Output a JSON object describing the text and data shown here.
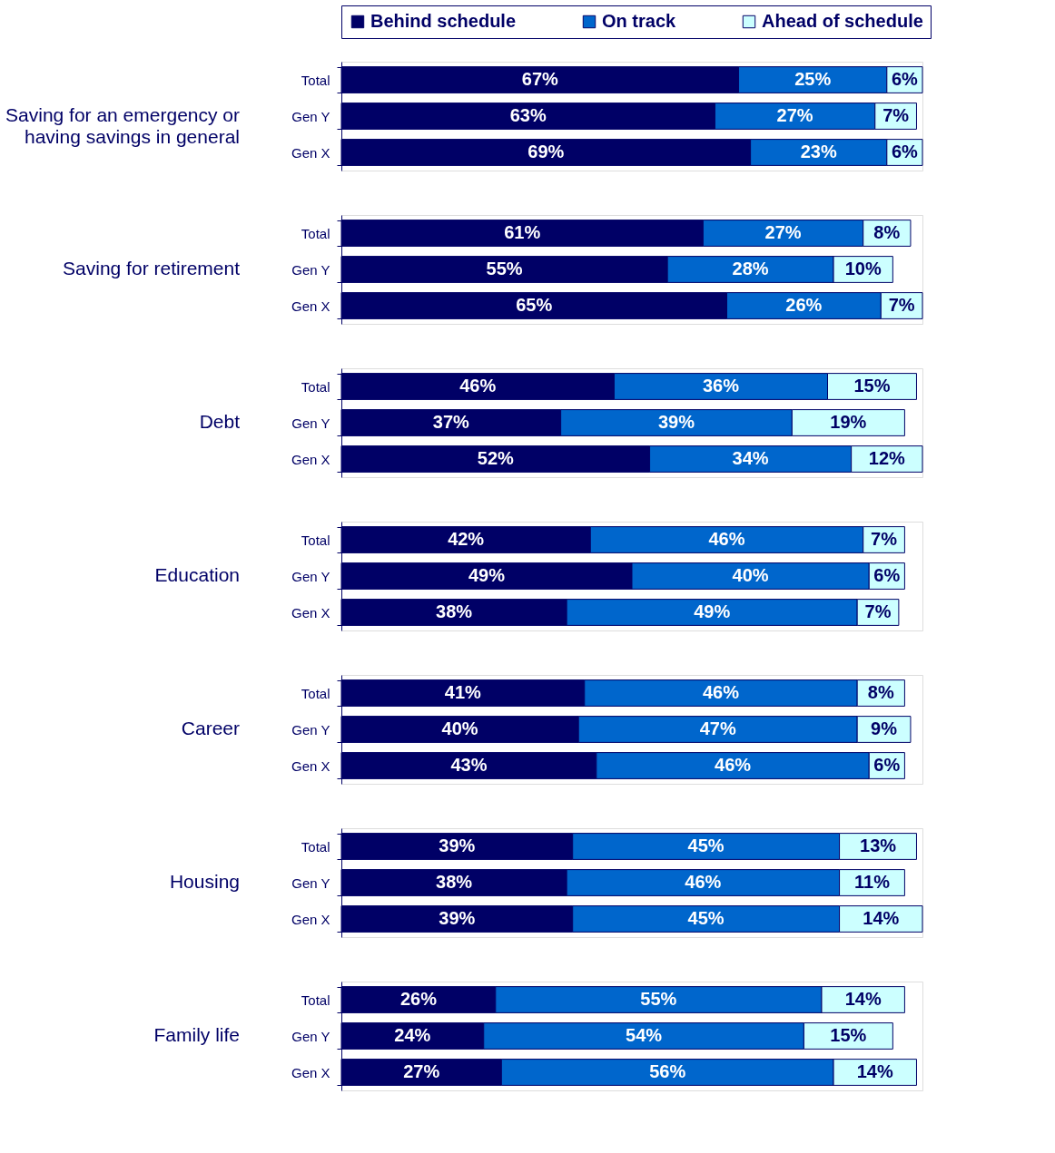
{
  "chart_data": [
    {
      "type": "bar",
      "orientation": "horizontal",
      "stacked": true,
      "title": "Saving for an emergency or having savings in general",
      "legend": "top",
      "categories": [
        "Total",
        "Gen Y",
        "Gen X"
      ],
      "series": [
        {
          "name": "Behind schedule",
          "color": "#000066",
          "values": [
            67,
            63,
            69
          ],
          "value_labels": [
            "67%",
            "63%",
            "69%"
          ]
        },
        {
          "name": "On track",
          "color": "#0066cc",
          "values": [
            25,
            27,
            23
          ],
          "value_labels": [
            "25%",
            "27%",
            "23%"
          ]
        },
        {
          "name": "Ahead of schedule",
          "color": "#ccffff",
          "values": [
            6,
            7,
            6
          ],
          "value_labels": [
            "6%",
            "7%",
            "6%"
          ]
        }
      ]
    },
    {
      "type": "bar",
      "orientation": "horizontal",
      "stacked": true,
      "title": "Saving for retirement",
      "categories": [
        "Total",
        "Gen Y",
        "Gen X"
      ],
      "series": [
        {
          "color": "#000066",
          "values": [
            61,
            55,
            65
          ],
          "value_labels": [
            "61%",
            "55%",
            "65%"
          ]
        },
        {
          "color": "#0066cc",
          "values": [
            27,
            28,
            26
          ],
          "value_labels": [
            "27%",
            "28%",
            "26%"
          ]
        },
        {
          "color": "#ccffff",
          "values": [
            8,
            10,
            7
          ],
          "value_labels": [
            "8%",
            "10%",
            "7%"
          ]
        }
      ]
    },
    {
      "type": "bar",
      "orientation": "horizontal",
      "stacked": true,
      "title": "Debt",
      "categories": [
        "Total",
        "Gen Y",
        "Gen X"
      ],
      "series": [
        {
          "color": "#000066",
          "values": [
            46,
            37,
            52
          ],
          "value_labels": [
            "46%",
            "37%",
            "52%"
          ]
        },
        {
          "color": "#0066cc",
          "values": [
            36,
            39,
            34
          ],
          "value_labels": [
            "36%",
            "39%",
            "34%"
          ]
        },
        {
          "color": "#ccffff",
          "values": [
            15,
            19,
            12
          ],
          "value_labels": [
            "15%",
            "19%",
            "12%"
          ]
        }
      ]
    },
    {
      "type": "bar",
      "orientation": "horizontal",
      "stacked": true,
      "title": "Education",
      "categories": [
        "Total",
        "Gen Y",
        "Gen X"
      ],
      "series": [
        {
          "color": "#000066",
          "values": [
            42,
            49,
            38
          ],
          "value_labels": [
            "42%",
            "49%",
            "38%"
          ]
        },
        {
          "color": "#0066cc",
          "values": [
            46,
            40,
            49
          ],
          "value_labels": [
            "46%",
            "40%",
            "49%"
          ]
        },
        {
          "color": "#ccffff",
          "values": [
            7,
            6,
            7
          ],
          "value_labels": [
            "7%",
            "6%",
            "7%"
          ]
        }
      ]
    },
    {
      "type": "bar",
      "orientation": "horizontal",
      "stacked": true,
      "title": "Career",
      "categories": [
        "Total",
        "Gen Y",
        "Gen X"
      ],
      "series": [
        {
          "color": "#000066",
          "values": [
            41,
            40,
            43
          ],
          "value_labels": [
            "41%",
            "40%",
            "43%"
          ]
        },
        {
          "color": "#0066cc",
          "values": [
            46,
            47,
            46
          ],
          "value_labels": [
            "46%",
            "47%",
            "46%"
          ]
        },
        {
          "color": "#ccffff",
          "values": [
            8,
            9,
            6
          ],
          "value_labels": [
            "8%",
            "9%",
            "6%"
          ]
        }
      ]
    },
    {
      "type": "bar",
      "orientation": "horizontal",
      "stacked": true,
      "title": "Housing",
      "categories": [
        "Total",
        "Gen Y",
        "Gen X"
      ],
      "series": [
        {
          "color": "#000066",
          "values": [
            39,
            38,
            39
          ],
          "value_labels": [
            "39%",
            "38%",
            "39%"
          ]
        },
        {
          "color": "#0066cc",
          "values": [
            45,
            46,
            45
          ],
          "value_labels": [
            "45%",
            "46%",
            "45%"
          ]
        },
        {
          "color": "#ccffff",
          "values": [
            13,
            11,
            14
          ],
          "value_labels": [
            "13%",
            "11%",
            "14%"
          ]
        }
      ]
    },
    {
      "type": "bar",
      "orientation": "horizontal",
      "stacked": true,
      "title": "Family life",
      "categories": [
        "Total",
        "Gen Y",
        "Gen X"
      ],
      "series": [
        {
          "color": "#000066",
          "values": [
            26,
            24,
            27
          ],
          "value_labels": [
            "26%",
            "24%",
            "27%"
          ]
        },
        {
          "color": "#0066cc",
          "values": [
            55,
            54,
            56
          ],
          "value_labels": [
            "55%",
            "54%",
            "56%"
          ]
        },
        {
          "color": "#ccffff",
          "values": [
            14,
            15,
            14
          ],
          "value_labels": [
            "14%",
            "15%",
            "14%"
          ]
        }
      ]
    }
  ]
}
